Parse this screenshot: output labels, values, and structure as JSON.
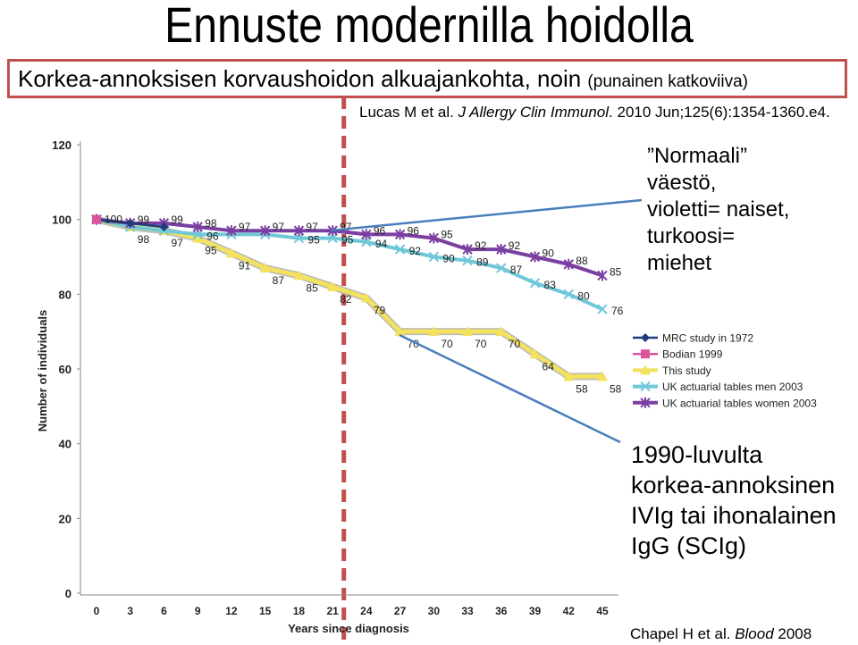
{
  "slide": {
    "title": "Ennuste modernilla hoidolla",
    "subtitle_main": "Korkea-annoksisen korvaushoidon alkuajankohta, noin ",
    "subtitle_small": "(punainen katkoviiva)",
    "citation_top_authors": "Lucas M et al. ",
    "citation_top_journal": "J Allergy Clin Immunol",
    "citation_top_sep": ". ",
    "citation_top_ref": "2010 Jun;125(6):1354-1360.e4.",
    "note_population_quote": "”Normaali”",
    "note_population_lines": [
      "väestö,",
      "violetti= naiset,",
      "turkoosi=",
      "miehet"
    ],
    "note_treatment_lines": [
      "1990-luvulta",
      "korkea-annoksinen",
      "IVIg tai ihonalainen",
      "IgG (SCIg)"
    ],
    "citation_bottom_authors": "Chapel H et al. ",
    "citation_bottom_journal": "Blood",
    "citation_bottom_year": " 2008"
  },
  "colors": {
    "accent_red": "#c0504d",
    "callout_line": "#4a7ebb",
    "mrc": "#1f3d7a",
    "bodian": "#d9549b",
    "this_study": "#f2e25e",
    "uk_men": "#6fc8d8",
    "uk_women": "#7a3fa0"
  },
  "chart_data": {
    "type": "line",
    "xlabel": "Years since diagnosis",
    "ylabel": "Number of individuals",
    "x": [
      0,
      3,
      6,
      9,
      12,
      15,
      18,
      21,
      24,
      27,
      30,
      33,
      36,
      39,
      42,
      45
    ],
    "xticks": [
      "0",
      "3",
      "6",
      "9",
      "12",
      "15",
      "18",
      "21",
      "24",
      "27",
      "30",
      "33",
      "36",
      "39",
      "42",
      "45"
    ],
    "ylim": [
      0,
      120
    ],
    "yticks": [
      "0",
      "20",
      "40",
      "60",
      "80",
      "100",
      "120"
    ],
    "grid": false,
    "legend_position": "right",
    "threshold_line": {
      "x": 22,
      "style": "dashed",
      "color": "#c0504d"
    },
    "series": [
      {
        "name": "MRC study in 1972",
        "x": [
          0,
          3,
          6
        ],
        "values": [
          100,
          99,
          98
        ]
      },
      {
        "name": "Bodian 1999",
        "x": [
          0
        ],
        "values": [
          100
        ]
      },
      {
        "name": "This study",
        "x": [
          0,
          3,
          6,
          9,
          12,
          15,
          18,
          21,
          24,
          27,
          30,
          33,
          36,
          39,
          42,
          45
        ],
        "values": [
          100,
          98,
          97,
          95,
          91,
          87,
          85,
          82,
          79,
          70,
          70,
          70,
          70,
          64,
          58,
          58
        ]
      },
      {
        "name": "UK actuarial tables men 2003",
        "x": [
          0,
          3,
          6,
          9,
          12,
          15,
          18,
          21,
          24,
          27,
          30,
          33,
          36,
          39,
          42,
          45
        ],
        "values": [
          100,
          98,
          97,
          96,
          96,
          96,
          95,
          95,
          94,
          92,
          90,
          89,
          87,
          83,
          80,
          76
        ]
      },
      {
        "name": "UK actuarial tables women 2003",
        "x": [
          0,
          3,
          6,
          9,
          12,
          15,
          18,
          21,
          24,
          27,
          30,
          33,
          36,
          39,
          42,
          45
        ],
        "values": [
          100,
          99,
          99,
          98,
          97,
          97,
          97,
          97,
          96,
          96,
          95,
          92,
          92,
          90,
          88,
          85
        ]
      }
    ],
    "data_labels": [
      {
        "text": "100",
        "x": 0,
        "y": 100,
        "series": "MRC study in 1972"
      },
      {
        "text": "98",
        "x": 3,
        "y": 98,
        "series": "This study"
      },
      {
        "text": "99",
        "x": 3,
        "y": 99,
        "series": "UK actuarial tables women 2003"
      },
      {
        "text": "97",
        "x": 6,
        "y": 97,
        "series": "This study"
      },
      {
        "text": "99",
        "x": 6,
        "y": 99,
        "series": "UK actuarial tables women 2003"
      },
      {
        "text": "95",
        "x": 9,
        "y": 95,
        "series": "This study"
      },
      {
        "text": "96",
        "x": 9,
        "y": 96,
        "series": "UK actuarial tables men 2003"
      },
      {
        "text": "98",
        "x": 9,
        "y": 98,
        "series": "UK actuarial tables women 2003"
      },
      {
        "text": "91",
        "x": 12,
        "y": 91,
        "series": "This study"
      },
      {
        "text": "97",
        "x": 12,
        "y": 97,
        "series": "UK actuarial tables women 2003"
      },
      {
        "text": "87",
        "x": 15,
        "y": 87,
        "series": "This study"
      },
      {
        "text": "97",
        "x": 15,
        "y": 97,
        "series": "UK actuarial tables women 2003"
      },
      {
        "text": "85",
        "x": 18,
        "y": 85,
        "series": "This study"
      },
      {
        "text": "95",
        "x": 18,
        "y": 95,
        "series": "UK actuarial tables men 2003"
      },
      {
        "text": "97",
        "x": 18,
        "y": 97,
        "series": "UK actuarial tables women 2003"
      },
      {
        "text": "82",
        "x": 21,
        "y": 82,
        "series": "This study"
      },
      {
        "text": "95",
        "x": 21,
        "y": 95,
        "series": "UK actuarial tables men 2003"
      },
      {
        "text": "97",
        "x": 21,
        "y": 97,
        "series": "UK actuarial tables women 2003"
      },
      {
        "text": "79",
        "x": 24,
        "y": 79,
        "series": "This study"
      },
      {
        "text": "94",
        "x": 24,
        "y": 94,
        "series": "UK actuarial tables men 2003"
      },
      {
        "text": "96",
        "x": 24,
        "y": 96,
        "series": "UK actuarial tables women 2003"
      },
      {
        "text": "70",
        "x": 27,
        "y": 70,
        "series": "This study"
      },
      {
        "text": "92",
        "x": 27,
        "y": 92,
        "series": "UK actuarial tables men 2003"
      },
      {
        "text": "96",
        "x": 27,
        "y": 96,
        "series": "UK actuarial tables women 2003"
      },
      {
        "text": "70",
        "x": 30,
        "y": 70,
        "series": "This study"
      },
      {
        "text": "90",
        "x": 30,
        "y": 90,
        "series": "UK actuarial tables men 2003"
      },
      {
        "text": "95",
        "x": 30,
        "y": 95,
        "series": "UK actuarial tables women 2003"
      },
      {
        "text": "70",
        "x": 33,
        "y": 70,
        "series": "This study"
      },
      {
        "text": "89",
        "x": 33,
        "y": 89,
        "series": "UK actuarial tables men 2003"
      },
      {
        "text": "92",
        "x": 33,
        "y": 92,
        "series": "UK actuarial tables women 2003"
      },
      {
        "text": "70",
        "x": 36,
        "y": 70,
        "series": "This study"
      },
      {
        "text": "87",
        "x": 36,
        "y": 87,
        "series": "UK actuarial tables men 2003"
      },
      {
        "text": "92",
        "x": 36,
        "y": 92,
        "series": "UK actuarial tables women 2003"
      },
      {
        "text": "64",
        "x": 39,
        "y": 64,
        "series": "This study"
      },
      {
        "text": "83",
        "x": 39,
        "y": 83,
        "series": "UK actuarial tables men 2003"
      },
      {
        "text": "90",
        "x": 39,
        "y": 90,
        "series": "UK actuarial tables women 2003"
      },
      {
        "text": "58",
        "x": 42,
        "y": 58,
        "series": "This study"
      },
      {
        "text": "80",
        "x": 42,
        "y": 80,
        "series": "UK actuarial tables men 2003"
      },
      {
        "text": "88",
        "x": 42,
        "y": 88,
        "series": "UK actuarial tables women 2003"
      },
      {
        "text": "58",
        "x": 45,
        "y": 58,
        "series": "This study"
      },
      {
        "text": "76",
        "x": 45,
        "y": 76,
        "series": "UK actuarial tables men 2003"
      },
      {
        "text": "85",
        "x": 45,
        "y": 85,
        "series": "UK actuarial tables women 2003"
      }
    ]
  }
}
